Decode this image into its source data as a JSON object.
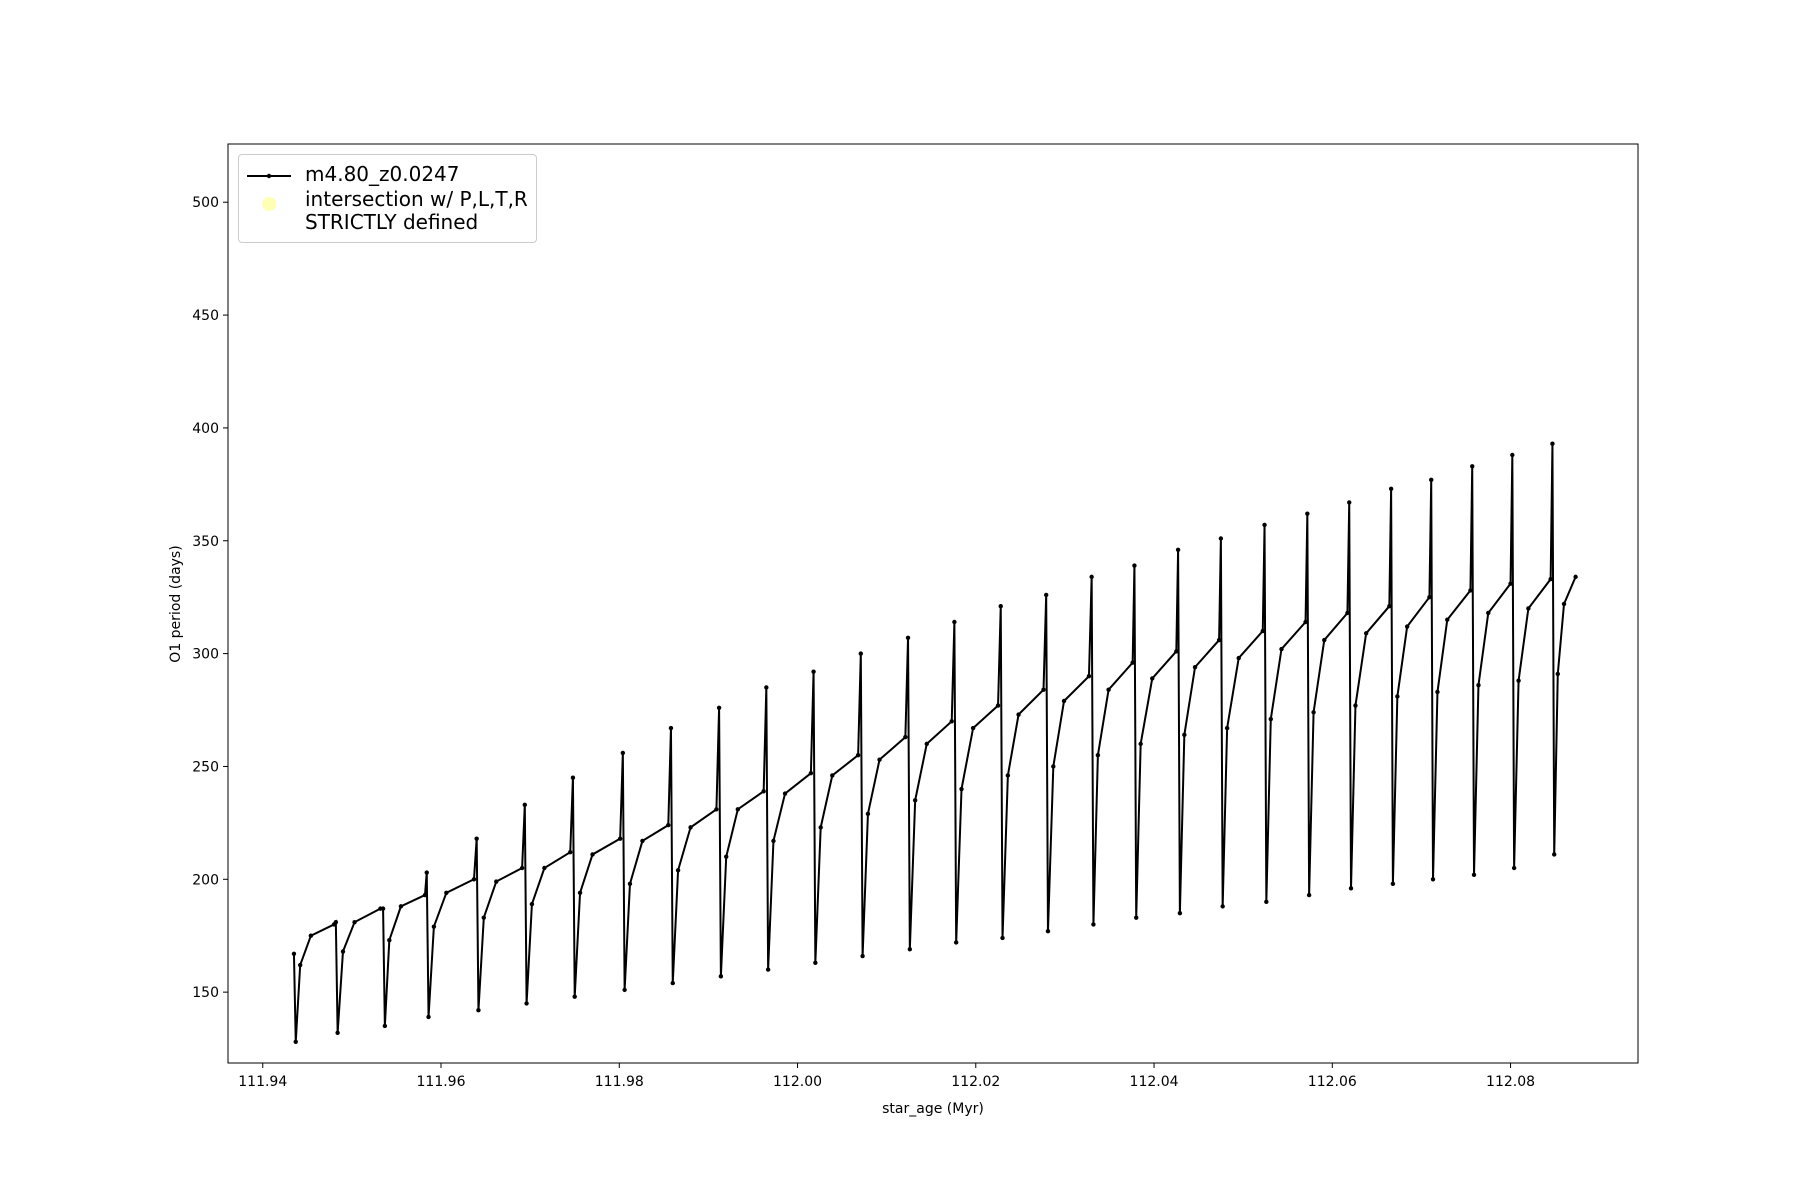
{
  "chart_data": {
    "type": "line",
    "xlabel": "star_age (Myr)",
    "ylabel": "O1 period (days)",
    "xlim": [
      111.9361,
      112.0943
    ],
    "ylim": [
      118.6,
      525.8
    ],
    "xticks": [
      111.94,
      111.96,
      111.98,
      {
        "value": 112,
        "label": "112.00"
      },
      112.02,
      112.04,
      112.06,
      112.08
    ],
    "yticks": [
      150,
      200,
      250,
      300,
      350,
      400,
      450,
      500
    ],
    "legend": "upper left",
    "series": [
      {
        "name": "m4.80_z0.0247",
        "color": "#000000",
        "marker": true,
        "x": [
          111.9435,
          111.9437,
          111.9442,
          111.9454,
          111.948,
          111.9482,
          111.9484,
          111.949,
          111.9503,
          111.9532,
          111.9535,
          111.9537,
          111.9542,
          111.9555,
          111.9582,
          111.9584,
          111.9586,
          111.9592,
          111.9606,
          111.9637,
          111.964,
          111.9642,
          111.9648,
          111.9662,
          111.9691,
          111.9694,
          111.9696,
          111.9702,
          111.9716,
          111.9745,
          111.9748,
          111.975,
          111.9756,
          111.977,
          111.9801,
          111.9804,
          111.9806,
          111.9812,
          111.9826,
          111.9855,
          111.9858,
          111.986,
          111.9866,
          111.988,
          111.9909,
          111.9912,
          111.9914,
          111.992,
          111.9933,
          111.9962,
          111.9965,
          111.9967,
          111.9973,
          111.9986,
          112.0015,
          112.0018,
          112.002,
          112.0026,
          112.0039,
          112.0068,
          112.0071,
          112.0073,
          112.0079,
          112.0092,
          112.0121,
          112.0124,
          112.0126,
          112.0132,
          112.0145,
          112.0173,
          112.0176,
          112.0178,
          112.0184,
          112.0197,
          112.0225,
          112.0228,
          112.023,
          112.0236,
          112.0248,
          112.0276,
          112.0279,
          112.0281,
          112.0287,
          112.0299,
          112.0327,
          112.033,
          112.0332,
          112.0337,
          112.0349,
          112.0376,
          112.0378,
          112.038,
          112.0385,
          112.0398,
          112.0425,
          112.0427,
          112.0429,
          112.0434,
          112.0446,
          112.0473,
          112.0475,
          112.0477,
          112.0482,
          112.0495,
          112.0522,
          112.0524,
          112.0526,
          112.0531,
          112.0543,
          112.057,
          112.0572,
          112.0574,
          112.0579,
          112.0591,
          112.0617,
          112.0619,
          112.0621,
          112.0626,
          112.0638,
          112.0664,
          112.0666,
          112.0668,
          112.0673,
          112.0684,
          112.0709,
          112.0711,
          112.0713,
          112.0718,
          112.0729,
          112.0755,
          112.0757,
          112.0759,
          112.0764,
          112.0775,
          112.08,
          112.0802,
          112.0804,
          112.0809,
          112.082,
          112.0845,
          112.0847,
          112.0849,
          112.0853,
          112.086,
          112.0873
        ],
        "values": [
          167,
          128,
          162,
          175,
          180,
          181,
          132,
          168,
          181,
          187,
          187,
          135,
          173,
          188,
          193,
          203,
          139,
          179,
          194,
          200,
          218,
          142,
          183,
          199,
          205,
          233,
          145,
          189,
          205,
          212,
          245,
          148,
          194,
          211,
          218,
          256,
          151,
          198,
          217,
          224,
          267,
          154,
          204,
          223,
          231,
          276,
          157,
          210,
          231,
          239,
          285,
          160,
          217,
          238,
          247,
          292,
          163,
          223,
          246,
          255,
          300,
          166,
          229,
          253,
          263,
          307,
          169,
          235,
          260,
          270,
          314,
          172,
          240,
          267,
          277,
          321,
          174,
          246,
          273,
          284,
          326,
          177,
          250,
          279,
          290,
          334,
          180,
          255,
          284,
          296,
          339,
          183,
          260,
          289,
          301,
          346,
          185,
          264,
          294,
          306,
          351,
          188,
          267,
          298,
          310,
          357,
          190,
          271,
          302,
          314,
          362,
          193,
          274,
          306,
          318,
          367,
          196,
          277,
          309,
          321,
          373,
          198,
          281,
          312,
          325,
          377,
          200,
          283,
          315,
          328,
          383,
          202,
          286,
          318,
          331,
          388,
          205,
          288,
          320,
          333,
          393,
          211,
          291,
          322,
          334
        ]
      },
      {
        "name": "intersection w/ P,L,T,R\nSTRICTLY defined",
        "color": "#ffffb3",
        "type": "scatter",
        "x": [],
        "values": []
      }
    ]
  }
}
